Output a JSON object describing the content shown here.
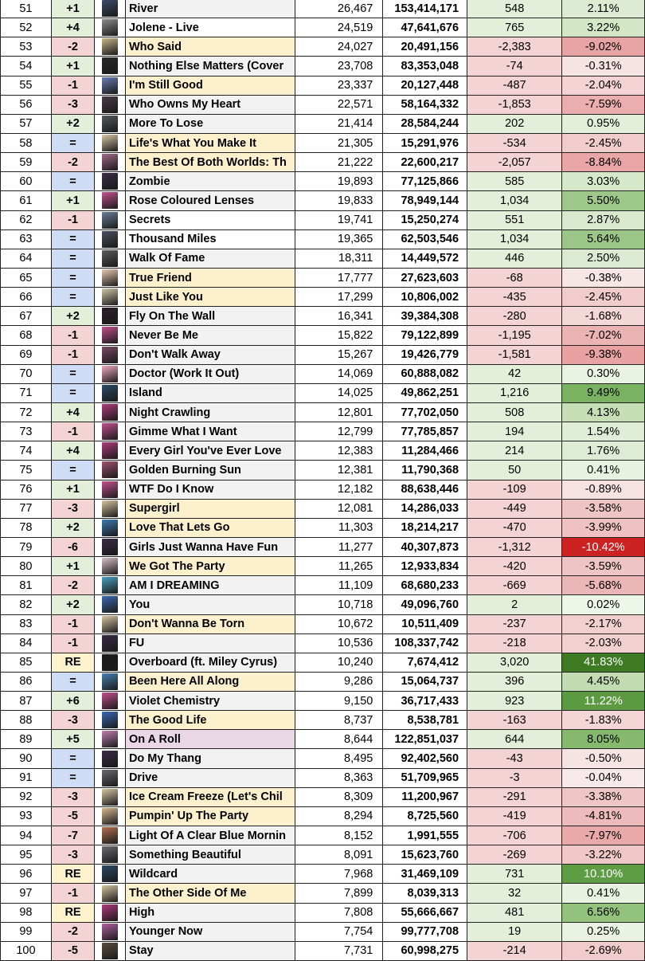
{
  "rows": [
    {
      "rank": "51",
      "change": "+1",
      "title": "River",
      "daily": "26,467",
      "total": "153,414,171",
      "diff": "548",
      "pct": "2.11%",
      "art": "#3c4a66",
      "tbg": "grey",
      "pbg": "#dcebd2",
      "dbg": "#e3efd9"
    },
    {
      "rank": "52",
      "change": "+4",
      "title": "Jolene - Live",
      "daily": "24,519",
      "total": "47,641,676",
      "diff": "765",
      "pct": "3.22%",
      "art": "#8c8c8c",
      "tbg": "white",
      "pbg": "#d3e6c6",
      "dbg": "#e3efd9"
    },
    {
      "rank": "53",
      "change": "-2",
      "title": "Who Said",
      "daily": "24,027",
      "total": "20,491,156",
      "diff": "-2,383",
      "pct": "-9.02%",
      "art": "#c7b58a",
      "tbg": "yellow",
      "pbg": "#e8a4a4",
      "dbg": "#f3d3d3"
    },
    {
      "rank": "54",
      "change": "+1",
      "title": "Nothing Else Matters (Cover",
      "daily": "23,708",
      "total": "83,353,048",
      "diff": "-74",
      "pct": "-0.31%",
      "art": "#2a2a2a",
      "tbg": "grey",
      "pbg": "#f6e4e4",
      "dbg": "#f3d3d3"
    },
    {
      "rank": "55",
      "change": "-1",
      "title": "I'm Still Good",
      "daily": "23,337",
      "total": "20,127,448",
      "diff": "-487",
      "pct": "-2.04%",
      "art": "#6a7bb0",
      "tbg": "yellow",
      "pbg": "#f3d3d3",
      "dbg": "#f3d3d3"
    },
    {
      "rank": "56",
      "change": "-3",
      "title": "Who Owns My Heart",
      "daily": "22,571",
      "total": "58,164,332",
      "diff": "-1,853",
      "pct": "-7.59%",
      "art": "#4a3a46",
      "tbg": "grey",
      "pbg": "#ebaeae",
      "dbg": "#f3d3d3"
    },
    {
      "rank": "57",
      "change": "+2",
      "title": "More To Lose",
      "daily": "21,414",
      "total": "28,584,244",
      "diff": "202",
      "pct": "0.95%",
      "art": "#55585c",
      "tbg": "grey",
      "pbg": "#e3efd9",
      "dbg": "#e3efd9"
    },
    {
      "rank": "58",
      "change": "=",
      "title": "Life's What You Make It",
      "daily": "21,305",
      "total": "15,291,976",
      "diff": "-534",
      "pct": "-2.45%",
      "art": "#d9c7a7",
      "tbg": "yellow",
      "pbg": "#f1cccc",
      "dbg": "#f3d3d3"
    },
    {
      "rank": "59",
      "change": "-2",
      "title": "The Best Of Both Worlds: Th",
      "daily": "21,222",
      "total": "22,600,217",
      "diff": "-2,057",
      "pct": "-8.84%",
      "art": "#a06a8a",
      "tbg": "yellow",
      "pbg": "#e8a6a6",
      "dbg": "#f3d3d3"
    },
    {
      "rank": "60",
      "change": "=",
      "title": "Zombie",
      "daily": "19,893",
      "total": "77,125,866",
      "diff": "585",
      "pct": "3.03%",
      "art": "#3a2c45",
      "tbg": "grey",
      "pbg": "#d6e8ca",
      "dbg": "#e3efd9"
    },
    {
      "rank": "61",
      "change": "+1",
      "title": "Rose Coloured Lenses",
      "daily": "19,833",
      "total": "78,949,144",
      "diff": "1,034",
      "pct": "5.50%",
      "art": "#c4508e",
      "tbg": "grey",
      "pbg": "#9ec88a",
      "dbg": "#e3efd9"
    },
    {
      "rank": "62",
      "change": "-1",
      "title": "Secrets",
      "daily": "19,741",
      "total": "15,250,274",
      "diff": "551",
      "pct": "2.87%",
      "art": "#6a7d96",
      "tbg": "white",
      "pbg": "#d9e9ce",
      "dbg": "#e3efd9"
    },
    {
      "rank": "63",
      "change": "=",
      "title": "Thousand Miles",
      "daily": "19,365",
      "total": "62,503,546",
      "diff": "1,034",
      "pct": "5.64%",
      "art": "#4b4f5e",
      "tbg": "white",
      "pbg": "#9cc687",
      "dbg": "#e3efd9"
    },
    {
      "rank": "64",
      "change": "=",
      "title": "Walk Of Fame",
      "daily": "18,311",
      "total": "14,449,572",
      "diff": "446",
      "pct": "2.50%",
      "art": "#5c5c5c",
      "tbg": "grey",
      "pbg": "#dbead0",
      "dbg": "#e3efd9"
    },
    {
      "rank": "65",
      "change": "=",
      "title": "True Friend",
      "daily": "17,777",
      "total": "27,623,603",
      "diff": "-68",
      "pct": "-0.38%",
      "art": "#e8c8b0",
      "tbg": "yellow",
      "pbg": "#f7e6e6",
      "dbg": "#f3d3d3"
    },
    {
      "rank": "66",
      "change": "=",
      "title": "Just Like You",
      "daily": "17,299",
      "total": "10,806,002",
      "diff": "-435",
      "pct": "-2.45%",
      "art": "#cfc6a6",
      "tbg": "yellow",
      "pbg": "#f1cccc",
      "dbg": "#f3d3d3"
    },
    {
      "rank": "67",
      "change": "+2",
      "title": "Fly On The Wall",
      "daily": "16,341",
      "total": "39,384,308",
      "diff": "-280",
      "pct": "-1.68%",
      "art": "#2b1f2a",
      "tbg": "grey",
      "pbg": "#f4d8d8",
      "dbg": "#f3d3d3"
    },
    {
      "rank": "68",
      "change": "-1",
      "title": "Never Be Me",
      "daily": "15,822",
      "total": "79,122,899",
      "diff": "-1,195",
      "pct": "-7.02%",
      "art": "#c4508e",
      "tbg": "grey",
      "pbg": "#ecb3b3",
      "dbg": "#f3d3d3"
    },
    {
      "rank": "69",
      "change": "-1",
      "title": "Don't Walk Away",
      "daily": "15,267",
      "total": "19,426,779",
      "diff": "-1,581",
      "pct": "-9.38%",
      "art": "#7a4a64",
      "tbg": "grey",
      "pbg": "#e8a2a2",
      "dbg": "#f3d3d3"
    },
    {
      "rank": "70",
      "change": "=",
      "title": "Doctor (Work It Out)",
      "daily": "14,069",
      "total": "60,888,082",
      "diff": "42",
      "pct": "0.30%",
      "art": "#f0a8c0",
      "tbg": "grey",
      "pbg": "#eaf3e3",
      "dbg": "#e3efd9"
    },
    {
      "rank": "71",
      "change": "=",
      "title": "Island",
      "daily": "14,025",
      "total": "49,862,251",
      "diff": "1,216",
      "pct": "9.49%",
      "art": "#2b4a66",
      "tbg": "grey",
      "pbg": "#79b261",
      "dbg": "#e3efd9"
    },
    {
      "rank": "72",
      "change": "+4",
      "title": "Night Crawling",
      "daily": "12,801",
      "total": "77,702,050",
      "diff": "508",
      "pct": "4.13%",
      "art": "#b03a7e",
      "tbg": "grey",
      "pbg": "#c6dfb6",
      "dbg": "#e3efd9"
    },
    {
      "rank": "73",
      "change": "-1",
      "title": "Gimme What I Want",
      "daily": "12,799",
      "total": "77,785,857",
      "diff": "194",
      "pct": "1.54%",
      "art": "#c4508e",
      "tbg": "grey",
      "pbg": "#e0eed7",
      "dbg": "#e3efd9"
    },
    {
      "rank": "74",
      "change": "+4",
      "title": "Every Girl You've Ever Love",
      "daily": "12,383",
      "total": "11,284,466",
      "diff": "214",
      "pct": "1.76%",
      "art": "#b03a7e",
      "tbg": "grey",
      "pbg": "#dfecd5",
      "dbg": "#e3efd9"
    },
    {
      "rank": "75",
      "change": "=",
      "title": "Golden Burning Sun",
      "daily": "12,381",
      "total": "11,790,368",
      "diff": "50",
      "pct": "0.41%",
      "art": "#a0506e",
      "tbg": "grey",
      "pbg": "#e8f2e1",
      "dbg": "#e3efd9"
    },
    {
      "rank": "76",
      "change": "+1",
      "title": "WTF Do I Know",
      "daily": "12,182",
      "total": "88,638,446",
      "diff": "-109",
      "pct": "-0.89%",
      "art": "#c4508e",
      "tbg": "grey",
      "pbg": "#f6e2e2",
      "dbg": "#f3d3d3"
    },
    {
      "rank": "77",
      "change": "-3",
      "title": "Supergirl",
      "daily": "12,081",
      "total": "14,286,033",
      "diff": "-449",
      "pct": "-3.58%",
      "art": "#d6c4a0",
      "tbg": "yellow",
      "pbg": "#efc4c4",
      "dbg": "#f3d3d3"
    },
    {
      "rank": "78",
      "change": "+2",
      "title": "Love That Lets Go",
      "daily": "11,303",
      "total": "18,214,217",
      "diff": "-470",
      "pct": "-3.99%",
      "art": "#3c7ab0",
      "tbg": "yellow",
      "pbg": "#efc1c1",
      "dbg": "#f3d3d3"
    },
    {
      "rank": "79",
      "change": "-6",
      "title": "Girls Just Wanna Have Fun",
      "daily": "11,277",
      "total": "40,307,873",
      "diff": "-1,312",
      "pct": "-10.42%",
      "art": "#3a2c45",
      "tbg": "grey",
      "pbg": "#cc2222",
      "dbg": "#f3d3d3",
      "pcolor": "#ffffff"
    },
    {
      "rank": "80",
      "change": "+1",
      "title": "We Got The Party",
      "daily": "11,265",
      "total": "12,933,834",
      "diff": "-420",
      "pct": "-3.59%",
      "art": "#d8c0c8",
      "tbg": "yellow",
      "pbg": "#efc4c4",
      "dbg": "#f3d3d3"
    },
    {
      "rank": "81",
      "change": "-2",
      "title": "AM I DREAMING",
      "daily": "11,109",
      "total": "68,680,233",
      "diff": "-669",
      "pct": "-5.68%",
      "art": "#4aa0c0",
      "tbg": "grey",
      "pbg": "#ebb6b6",
      "dbg": "#f3d3d3"
    },
    {
      "rank": "82",
      "change": "+2",
      "title": "You",
      "daily": "10,718",
      "total": "49,096,760",
      "diff": "2",
      "pct": "0.02%",
      "art": "#3c6ab0",
      "tbg": "grey",
      "pbg": "#eef6e9",
      "dbg": "#e3efd9"
    },
    {
      "rank": "83",
      "change": "-1",
      "title": "Don't Wanna Be Torn",
      "daily": "10,672",
      "total": "10,511,409",
      "diff": "-237",
      "pct": "-2.17%",
      "art": "#d6c4a0",
      "tbg": "yellow",
      "pbg": "#f2d0d0",
      "dbg": "#f3d3d3"
    },
    {
      "rank": "84",
      "change": "-1",
      "title": "FU",
      "daily": "10,536",
      "total": "108,337,742",
      "diff": "-218",
      "pct": "-2.03%",
      "art": "#3a2c45",
      "tbg": "grey",
      "pbg": "#f2d0d0",
      "dbg": "#f3d3d3"
    },
    {
      "rank": "85",
      "change": "RE",
      "title": "Overboard (ft. Miley Cyrus)",
      "daily": "10,240",
      "total": "7,674,412",
      "diff": "3,020",
      "pct": "41.83%",
      "art": "#1c1c1c",
      "tbg": "grey",
      "pbg": "#3d7a22",
      "dbg": "#e3efd9",
      "pcolor": "#ffffff"
    },
    {
      "rank": "86",
      "change": "=",
      "title": "Been Here All Along",
      "daily": "9,286",
      "total": "15,064,737",
      "diff": "396",
      "pct": "4.45%",
      "art": "#4a80b0",
      "tbg": "yellow",
      "pbg": "#c2dcb1",
      "dbg": "#e3efd9"
    },
    {
      "rank": "87",
      "change": "+6",
      "title": "Violet Chemistry",
      "daily": "9,150",
      "total": "36,717,433",
      "diff": "923",
      "pct": "11.22%",
      "art": "#c4508e",
      "tbg": "grey",
      "pbg": "#5c9a42",
      "dbg": "#e3efd9",
      "pcolor": "#ffffff"
    },
    {
      "rank": "88",
      "change": "-3",
      "title": "The Good Life",
      "daily": "8,737",
      "total": "8,538,781",
      "diff": "-163",
      "pct": "-1.83%",
      "art": "#3c6ab0",
      "tbg": "yellow",
      "pbg": "#f4d6d6",
      "dbg": "#f3d3d3"
    },
    {
      "rank": "89",
      "change": "+5",
      "title": "On A Roll",
      "daily": "8,644",
      "total": "122,851,037",
      "diff": "644",
      "pct": "8.05%",
      "art": "#c080b0",
      "tbg": "pink",
      "pbg": "#86b96e",
      "dbg": "#e3efd9"
    },
    {
      "rank": "90",
      "change": "=",
      "title": "Do My Thang",
      "daily": "8,495",
      "total": "92,402,560",
      "diff": "-43",
      "pct": "-0.50%",
      "art": "#3a2c45",
      "tbg": "grey",
      "pbg": "#f6e4e4",
      "dbg": "#f3d3d3"
    },
    {
      "rank": "91",
      "change": "=",
      "title": "Drive",
      "daily": "8,363",
      "total": "51,709,965",
      "diff": "-3",
      "pct": "-0.04%",
      "art": "#6a6a70",
      "tbg": "grey",
      "pbg": "#f8eaea",
      "dbg": "#f3d3d3"
    },
    {
      "rank": "92",
      "change": "-3",
      "title": "Ice Cream Freeze (Let's Chil",
      "daily": "8,309",
      "total": "11,200,967",
      "diff": "-291",
      "pct": "-3.38%",
      "art": "#d6c4a0",
      "tbg": "yellow",
      "pbg": "#efc6c6",
      "dbg": "#f3d3d3"
    },
    {
      "rank": "93",
      "change": "-5",
      "title": "Pumpin' Up The Party",
      "daily": "8,294",
      "total": "8,725,560",
      "diff": "-419",
      "pct": "-4.81%",
      "art": "#d6b890",
      "tbg": "yellow",
      "pbg": "#edbbbb",
      "dbg": "#f3d3d3"
    },
    {
      "rank": "94",
      "change": "-7",
      "title": "Light Of A Clear Blue Mornin",
      "daily": "8,152",
      "total": "1,991,555",
      "diff": "-706",
      "pct": "-7.97%",
      "art": "#b07050",
      "tbg": "grey",
      "pbg": "#e9a9a9",
      "dbg": "#f3d3d3"
    },
    {
      "rank": "95",
      "change": "-3",
      "title": "Something Beautiful",
      "daily": "8,091",
      "total": "15,623,760",
      "diff": "-269",
      "pct": "-3.22%",
      "art": "#6a6a70",
      "tbg": "grey",
      "pbg": "#f0c8c8",
      "dbg": "#f3d3d3"
    },
    {
      "rank": "96",
      "change": "RE",
      "title": "Wildcard",
      "daily": "7,968",
      "total": "31,469,109",
      "diff": "731",
      "pct": "10.10%",
      "art": "#2b4a66",
      "tbg": "grey",
      "pbg": "#5f9d45",
      "dbg": "#e3efd9",
      "pcolor": "#ffffff"
    },
    {
      "rank": "97",
      "change": "-1",
      "title": "The Other Side Of Me",
      "daily": "7,899",
      "total": "8,039,313",
      "diff": "32",
      "pct": "0.41%",
      "art": "#d6c4a0",
      "tbg": "yellow",
      "pbg": "#e8f2e1",
      "dbg": "#e3efd9"
    },
    {
      "rank": "98",
      "change": "RE",
      "title": "High",
      "daily": "7,808",
      "total": "55,666,667",
      "diff": "481",
      "pct": "6.56%",
      "art": "#b03a7e",
      "tbg": "grey",
      "pbg": "#93c27d",
      "dbg": "#e3efd9"
    },
    {
      "rank": "99",
      "change": "-2",
      "title": "Younger Now",
      "daily": "7,754",
      "total": "99,777,708",
      "diff": "19",
      "pct": "0.25%",
      "art": "#b060a0",
      "tbg": "grey",
      "pbg": "#eaf3e3",
      "dbg": "#e3efd9"
    },
    {
      "rank": "100",
      "change": "-5",
      "title": "Stay",
      "daily": "7,731",
      "total": "60,998,275",
      "diff": "-214",
      "pct": "-2.69%",
      "art": "#5a4e40",
      "tbg": "grey",
      "pbg": "#f1cccc",
      "dbg": "#f3d3d3"
    }
  ]
}
